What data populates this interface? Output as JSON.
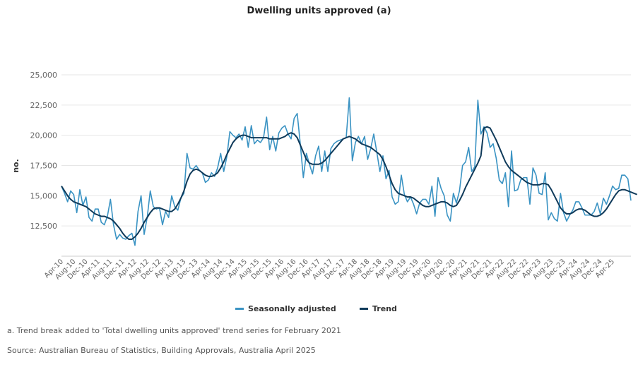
{
  "chart_data": {
    "type": "line",
    "title": "Dwelling units approved (a)",
    "xlabel": "",
    "ylabel": "no.",
    "ylim": [
      10000,
      25000
    ],
    "yticks": [
      12500,
      15000,
      17500,
      20000,
      22500,
      25000
    ],
    "ytick_labels": [
      "12,500",
      "15,000",
      "17,500",
      "20,000",
      "22,500",
      "25,000"
    ],
    "grid": true,
    "legend_position": "bottom-center",
    "x_start": "Apr-10",
    "x_end": "Apr-25",
    "xtick_labels": [
      "Apr-10",
      "Aug-10",
      "Dec-10",
      "Apr-11",
      "Aug-11",
      "Dec-11",
      "Apr-12",
      "Aug-12",
      "Dec-12",
      "Apr-13",
      "Aug-13",
      "Dec-13",
      "Apr-14",
      "Aug-14",
      "Dec-14",
      "Apr-15",
      "Aug-15",
      "Dec-15",
      "Apr-16",
      "Aug-16",
      "Dec-16",
      "Apr-17",
      "Aug-17",
      "Dec-17",
      "Apr-18",
      "Aug-18",
      "Dec-18",
      "Apr-19",
      "Aug-19",
      "Dec-19",
      "Apr-20",
      "Aug-20",
      "Dec-20",
      "Apr-21",
      "Aug-21",
      "Dec-21",
      "Apr-22",
      "Aug-22",
      "Dec-22",
      "Apr-23",
      "Aug-23",
      "Dec-23",
      "Apr-24",
      "Aug-24",
      "Dec-24",
      "Apr-25"
    ],
    "series": [
      {
        "name": "Seasonally adjusted",
        "color": "#3a93c3",
        "values": [
          15800,
          15200,
          14500,
          15400,
          15100,
          13600,
          15500,
          14200,
          14900,
          13200,
          12900,
          13900,
          13900,
          12800,
          12600,
          13300,
          14700,
          12600,
          11400,
          11800,
          11500,
          11400,
          11700,
          11900,
          10900,
          13700,
          15000,
          11800,
          13200,
          15400,
          14100,
          13900,
          14000,
          12600,
          13700,
          13200,
          15000,
          14100,
          13800,
          14800,
          15200,
          18500,
          17300,
          17200,
          17500,
          17100,
          16900,
          16100,
          16300,
          16900,
          16600,
          17300,
          18500,
          17000,
          18200,
          20300,
          20000,
          19800,
          20100,
          19600,
          20700,
          19000,
          20800,
          19300,
          19600,
          19400,
          19800,
          21500,
          18800,
          19900,
          18700,
          20200,
          20600,
          20800,
          20100,
          19700,
          21400,
          21800,
          19300,
          16500,
          18500,
          17600,
          16800,
          18300,
          19100,
          17000,
          18700,
          17000,
          18900,
          19300,
          19500,
          19600,
          19700,
          19800,
          23100,
          17900,
          19400,
          19900,
          19300,
          19900,
          18000,
          18900,
          20100,
          18600,
          17000,
          18300,
          16400,
          17100,
          14900,
          14300,
          14500,
          16700,
          15100,
          14500,
          14900,
          14300,
          13500,
          14400,
          14700,
          14700,
          14300,
          15800,
          13300,
          16500,
          15600,
          15000,
          13400,
          12900,
          15200,
          14400,
          15400,
          17500,
          17800,
          19000,
          17000,
          17400,
          22900,
          20100,
          20700,
          20200,
          19000,
          19300,
          18100,
          16300,
          16000,
          16900,
          14100,
          18700,
          15400,
          15500,
          16300,
          16500,
          16500,
          14300,
          17300,
          16700,
          15200,
          15100,
          16900,
          13000,
          13600,
          13100,
          12900,
          15200,
          13600,
          12900,
          13400,
          13800,
          14500,
          14500,
          14000,
          13400,
          13400,
          13400,
          13700,
          14400,
          13500,
          14800,
          14300,
          15000,
          15800,
          15500,
          15600,
          16700,
          16700,
          16400,
          14600
        ]
      },
      {
        "name": "Trend",
        "color": "#0f3a5a",
        "values": [
          15800,
          15400,
          15000,
          14700,
          14500,
          14400,
          14300,
          14200,
          14100,
          13900,
          13700,
          13500,
          13400,
          13300,
          13300,
          13200,
          13100,
          12900,
          12600,
          12300,
          11900,
          11600,
          11400,
          11400,
          11600,
          11900,
          12300,
          12800,
          13200,
          13600,
          13900,
          14000,
          14000,
          13900,
          13800,
          13700,
          13700,
          13900,
          14300,
          14800,
          15400,
          16200,
          16800,
          17100,
          17200,
          17100,
          16900,
          16700,
          16600,
          16600,
          16700,
          16900,
          17300,
          17800,
          18400,
          18900,
          19400,
          19700,
          19900,
          20000,
          20000,
          19900,
          19800,
          19800,
          19800,
          19800,
          19800,
          19800,
          19700,
          19700,
          19700,
          19700,
          19800,
          19900,
          20100,
          20200,
          20100,
          19800,
          19200,
          18600,
          18000,
          17700,
          17600,
          17600,
          17600,
          17700,
          17900,
          18200,
          18500,
          18800,
          19100,
          19400,
          19700,
          19800,
          19900,
          19800,
          19700,
          19500,
          19300,
          19200,
          19100,
          19000,
          18800,
          18600,
          18400,
          18000,
          17400,
          16700,
          16000,
          15500,
          15200,
          15100,
          15000,
          14900,
          14900,
          14800,
          14600,
          14400,
          14200,
          14100,
          14100,
          14200,
          14300,
          14400,
          14500,
          14500,
          14400,
          14200,
          14100,
          14200,
          14600,
          15100,
          15700,
          16200,
          16700,
          17200,
          17700,
          18300,
          20600,
          20700,
          20600,
          20100,
          19600,
          19000,
          18400,
          17800,
          17400,
          17100,
          16900,
          16700,
          16500,
          16300,
          16100,
          16000,
          15900,
          15900,
          15900,
          16000,
          16000,
          15900,
          15500,
          15000,
          14500,
          14000,
          13700,
          13500,
          13500,
          13600,
          13800,
          13900,
          13900,
          13800,
          13600,
          13400,
          13300,
          13300,
          13400,
          13600,
          13900,
          14300,
          14700,
          15100,
          15400,
          15500,
          15500,
          15400,
          15300,
          15200,
          15100
        ]
      }
    ]
  },
  "legend": {
    "items": [
      {
        "label": "Seasonally adjusted",
        "color": "#3a93c3"
      },
      {
        "label": "Trend",
        "color": "#0f3a5a"
      }
    ]
  },
  "notes": {
    "footnote": "a. Trend break added to 'Total dwelling units approved' trend series for February 2021",
    "source": "Source: Australian Bureau of Statistics, Building Approvals, Australia April 2025"
  }
}
